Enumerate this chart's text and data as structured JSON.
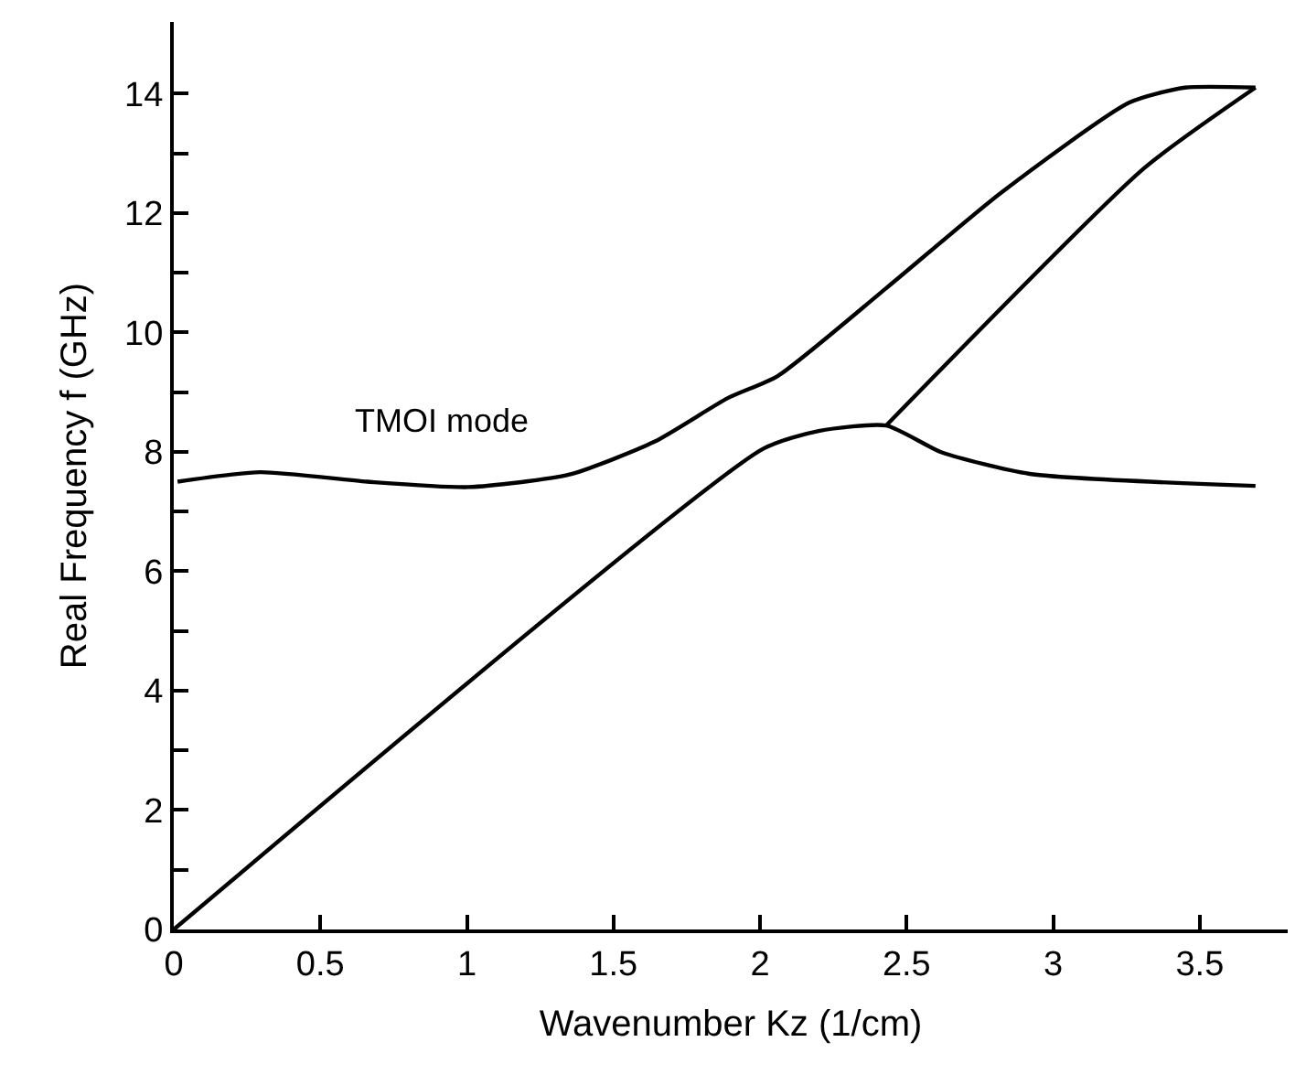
{
  "chart_data": {
    "type": "line",
    "xlabel": "Wavenumber Kz (1/cm)",
    "ylabel": "Real Frequency f (GHz)",
    "xlim": [
      0,
      3.8
    ],
    "ylim": [
      0,
      15.2
    ],
    "xticks": [
      0,
      {
        "value": 0.5,
        "label": "0.5"
      },
      1,
      1.5,
      2,
      2.5,
      3,
      3.5
    ],
    "yticks": [
      0,
      {
        "value": 1,
        "label": null
      },
      2,
      {
        "value": 3,
        "label": null
      },
      4,
      {
        "value": 5,
        "label": null
      },
      6,
      {
        "value": 7,
        "label": null
      },
      8,
      {
        "value": 9,
        "label": null
      },
      10,
      {
        "value": 11,
        "label": null
      },
      12,
      {
        "value": 13,
        "label": null
      },
      14
    ],
    "marker": "none",
    "line_style": "solid",
    "annotations": [
      "TMOI mode"
    ],
    "series": [
      {
        "color": "#000000",
        "x": [
          0.013,
          0.295,
          0.66,
          1.005,
          1.35,
          1.64,
          1.89,
          2.06,
          2.43,
          2.82,
          3.26,
          3.45,
          3.69
        ],
        "values": [
          7.5,
          7.66,
          7.5,
          7.41,
          7.62,
          8.17,
          8.9,
          9.27,
          10.74,
          12.33,
          13.85,
          14.1,
          14.1
        ]
      },
      {
        "color": "#000000",
        "x": [
          0,
          2.01,
          2.2,
          2.43,
          2.62,
          2.92,
          3.69
        ],
        "values": [
          0,
          8.05,
          8.35,
          8.44,
          7.99,
          7.63,
          7.43
        ]
      },
      {
        "color": "#000000",
        "x": [
          2.43,
          3.31,
          3.69
        ],
        "values": [
          8.44,
          12.75,
          14.1
        ]
      }
    ]
  }
}
